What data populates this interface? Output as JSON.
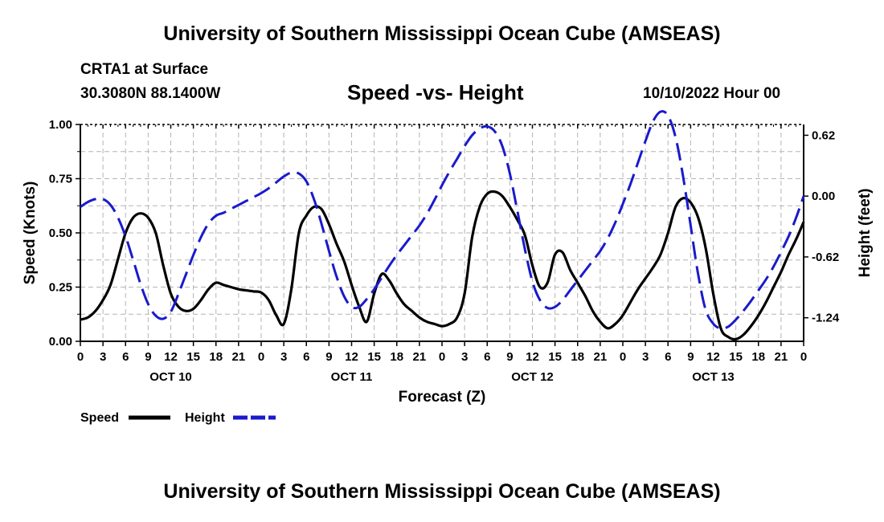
{
  "header": {
    "title": "University of Southern Mississippi Ocean Cube (AMSEAS)",
    "station": "CRTA1 at Surface",
    "coords": "30.3080N  88.1400W",
    "subtitle": "Speed -vs- Height",
    "datetime": "10/10/2022 Hour 00"
  },
  "footer": {
    "title": "University of Southern Mississippi Ocean Cube (AMSEAS)"
  },
  "colors": {
    "speed": "#000000",
    "height": "#1a1acc",
    "grid": "#b4b4b4"
  },
  "chart_data": {
    "type": "line",
    "title": "Speed -vs- Height",
    "xlabel": "Forecast (Z)",
    "ylabel": "Speed (Knots)",
    "y2label": "Height (feet)",
    "xlim": [
      0,
      96
    ],
    "ylim": [
      0,
      1
    ],
    "y2lim": [
      -1.48,
      0.73
    ],
    "x_tick_labels": [
      "0",
      "3",
      "6",
      "9",
      "12",
      "15",
      "18",
      "21",
      "0",
      "3",
      "6",
      "9",
      "12",
      "15",
      "18",
      "21",
      "0",
      "3",
      "6",
      "9",
      "12",
      "15",
      "18",
      "21",
      "0",
      "3",
      "6",
      "9",
      "12",
      "15",
      "18",
      "21",
      "0"
    ],
    "day_labels": [
      {
        "label": "OCT 10",
        "x": 12
      },
      {
        "label": "OCT 11",
        "x": 36
      },
      {
        "label": "OCT 12",
        "x": 60
      },
      {
        "label": "OCT 13",
        "x": 84
      }
    ],
    "y_ticks": [
      {
        "value": 0,
        "label": "0.00"
      },
      {
        "value": 0.25,
        "label": "0.25"
      },
      {
        "value": 0.5,
        "label": "0.50"
      },
      {
        "value": 0.75,
        "label": "0.75"
      },
      {
        "value": 1,
        "label": "1.00"
      }
    ],
    "y2_ticks": [
      {
        "value": 0.62,
        "label": "0.62"
      },
      {
        "value": 0,
        "label": "0.00"
      },
      {
        "value": -0.62,
        "label": "-0.62"
      },
      {
        "value": -1.24,
        "label": "-1.24"
      }
    ],
    "grid": true,
    "legend_position": "bottom-left",
    "series": [
      {
        "name": "Speed",
        "axis": "left",
        "style": "solid",
        "points": [
          [
            0,
            0.1
          ],
          [
            1,
            0.11
          ],
          [
            2,
            0.14
          ],
          [
            3,
            0.19
          ],
          [
            4,
            0.26
          ],
          [
            5,
            0.38
          ],
          [
            6,
            0.5
          ],
          [
            7,
            0.57
          ],
          [
            8,
            0.59
          ],
          [
            9,
            0.57
          ],
          [
            10,
            0.5
          ],
          [
            11,
            0.35
          ],
          [
            12,
            0.22
          ],
          [
            13,
            0.16
          ],
          [
            14,
            0.14
          ],
          [
            15,
            0.15
          ],
          [
            16,
            0.19
          ],
          [
            17,
            0.24
          ],
          [
            18,
            0.27
          ],
          [
            19,
            0.26
          ],
          [
            20,
            0.25
          ],
          [
            21,
            0.24
          ],
          [
            22,
            0.235
          ],
          [
            23,
            0.23
          ],
          [
            24,
            0.225
          ],
          [
            25,
            0.19
          ],
          [
            26,
            0.12
          ],
          [
            27,
            0.08
          ],
          [
            28,
            0.24
          ],
          [
            29,
            0.5
          ],
          [
            30,
            0.58
          ],
          [
            31,
            0.62
          ],
          [
            32,
            0.61
          ],
          [
            33,
            0.54
          ],
          [
            34,
            0.45
          ],
          [
            35,
            0.37
          ],
          [
            36,
            0.26
          ],
          [
            37,
            0.16
          ],
          [
            38,
            0.09
          ],
          [
            39,
            0.22
          ],
          [
            40,
            0.31
          ],
          [
            41,
            0.28
          ],
          [
            42,
            0.22
          ],
          [
            43,
            0.17
          ],
          [
            44,
            0.14
          ],
          [
            45,
            0.11
          ],
          [
            46,
            0.09
          ],
          [
            47,
            0.08
          ],
          [
            48,
            0.07
          ],
          [
            49,
            0.08
          ],
          [
            50,
            0.11
          ],
          [
            51,
            0.22
          ],
          [
            52,
            0.48
          ],
          [
            53,
            0.62
          ],
          [
            54,
            0.68
          ],
          [
            55,
            0.69
          ],
          [
            56,
            0.67
          ],
          [
            57,
            0.62
          ],
          [
            58,
            0.56
          ],
          [
            59,
            0.49
          ],
          [
            60,
            0.35
          ],
          [
            61,
            0.25
          ],
          [
            62,
            0.27
          ],
          [
            63,
            0.4
          ],
          [
            64,
            0.41
          ],
          [
            65,
            0.33
          ],
          [
            66,
            0.27
          ],
          [
            67,
            0.21
          ],
          [
            68,
            0.14
          ],
          [
            69,
            0.09
          ],
          [
            70,
            0.06
          ],
          [
            71,
            0.08
          ],
          [
            72,
            0.12
          ],
          [
            73,
            0.18
          ],
          [
            74,
            0.24
          ],
          [
            75,
            0.29
          ],
          [
            76,
            0.34
          ],
          [
            77,
            0.4
          ],
          [
            78,
            0.5
          ],
          [
            79,
            0.62
          ],
          [
            80,
            0.66
          ],
          [
            81,
            0.64
          ],
          [
            82,
            0.57
          ],
          [
            83,
            0.43
          ],
          [
            84,
            0.22
          ],
          [
            85,
            0.06
          ],
          [
            86,
            0.02
          ],
          [
            87,
            0.01
          ],
          [
            88,
            0.03
          ],
          [
            89,
            0.07
          ],
          [
            90,
            0.12
          ],
          [
            91,
            0.18
          ],
          [
            92,
            0.25
          ],
          [
            93,
            0.32
          ],
          [
            94,
            0.4
          ],
          [
            95,
            0.47
          ],
          [
            96,
            0.55
          ]
        ]
      },
      {
        "name": "Height",
        "axis": "right",
        "style": "dashed",
        "points": [
          [
            0,
            -0.11
          ],
          [
            1,
            -0.06
          ],
          [
            2,
            -0.03
          ],
          [
            3,
            -0.03
          ],
          [
            4,
            -0.09
          ],
          [
            5,
            -0.22
          ],
          [
            6,
            -0.41
          ],
          [
            7,
            -0.65
          ],
          [
            8,
            -0.9
          ],
          [
            9,
            -1.1
          ],
          [
            10,
            -1.22
          ],
          [
            11,
            -1.25
          ],
          [
            12,
            -1.18
          ],
          [
            13,
            -1.0
          ],
          [
            14,
            -0.8
          ],
          [
            15,
            -0.6
          ],
          [
            16,
            -0.42
          ],
          [
            17,
            -0.28
          ],
          [
            18,
            -0.2
          ],
          [
            19,
            -0.17
          ],
          [
            20,
            -0.13
          ],
          [
            21,
            -0.09
          ],
          [
            22,
            -0.05
          ],
          [
            23,
            -0.01
          ],
          [
            24,
            0.03
          ],
          [
            25,
            0.08
          ],
          [
            26,
            0.14
          ],
          [
            27,
            0.2
          ],
          [
            28,
            0.24
          ],
          [
            29,
            0.23
          ],
          [
            30,
            0.15
          ],
          [
            31,
            -0.03
          ],
          [
            32,
            -0.28
          ],
          [
            33,
            -0.56
          ],
          [
            34,
            -0.82
          ],
          [
            35,
            -1.02
          ],
          [
            36,
            -1.13
          ],
          [
            37,
            -1.13
          ],
          [
            38,
            -1.05
          ],
          [
            39,
            -0.95
          ],
          [
            40,
            -0.83
          ],
          [
            41,
            -0.71
          ],
          [
            42,
            -0.6
          ],
          [
            43,
            -0.5
          ],
          [
            44,
            -0.4
          ],
          [
            45,
            -0.3
          ],
          [
            46,
            -0.18
          ],
          [
            47,
            -0.04
          ],
          [
            48,
            0.11
          ],
          [
            49,
            0.25
          ],
          [
            50,
            0.38
          ],
          [
            51,
            0.51
          ],
          [
            52,
            0.62
          ],
          [
            53,
            0.69
          ],
          [
            54,
            0.71
          ],
          [
            55,
            0.66
          ],
          [
            56,
            0.51
          ],
          [
            57,
            0.23
          ],
          [
            58,
            -0.15
          ],
          [
            59,
            -0.54
          ],
          [
            60,
            -0.87
          ],
          [
            61,
            -1.06
          ],
          [
            62,
            -1.14
          ],
          [
            63,
            -1.13
          ],
          [
            64,
            -1.06
          ],
          [
            65,
            -0.96
          ],
          [
            66,
            -0.86
          ],
          [
            67,
            -0.76
          ],
          [
            68,
            -0.66
          ],
          [
            69,
            -0.56
          ],
          [
            70,
            -0.43
          ],
          [
            71,
            -0.27
          ],
          [
            72,
            -0.08
          ],
          [
            73,
            0.12
          ],
          [
            74,
            0.34
          ],
          [
            75,
            0.56
          ],
          [
            76,
            0.76
          ],
          [
            77,
            0.86
          ],
          [
            78,
            0.82
          ],
          [
            79,
            0.6
          ],
          [
            80,
            0.2
          ],
          [
            81,
            -0.3
          ],
          [
            82,
            -0.8
          ],
          [
            83,
            -1.16
          ],
          [
            84,
            -1.3
          ],
          [
            85,
            -1.35
          ],
          [
            86,
            -1.33
          ],
          [
            87,
            -1.26
          ],
          [
            88,
            -1.17
          ],
          [
            89,
            -1.07
          ],
          [
            90,
            -0.96
          ],
          [
            91,
            -0.85
          ],
          [
            92,
            -0.72
          ],
          [
            93,
            -0.57
          ],
          [
            94,
            -0.41
          ],
          [
            95,
            -0.22
          ],
          [
            96,
            0.0
          ]
        ]
      }
    ]
  }
}
